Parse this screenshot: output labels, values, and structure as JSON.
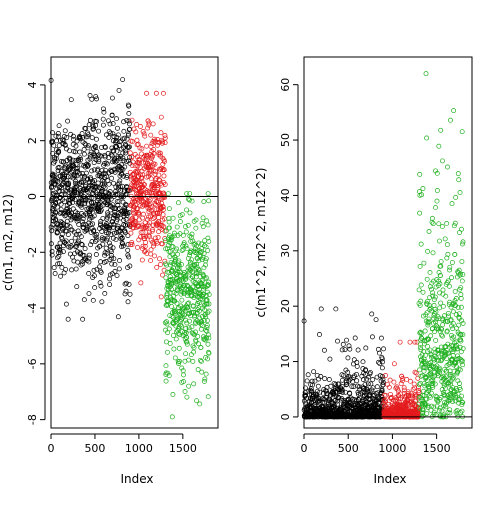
{
  "chart_data": [
    {
      "type": "scatter",
      "xlabel": "Index",
      "ylabel": "c(m1, m2, m12)",
      "xlim": [
        0,
        1900
      ],
      "ylim": [
        -8.3,
        5
      ],
      "xticks": [
        0,
        500,
        1000,
        1500
      ],
      "yticks": [
        4,
        2,
        0,
        -2,
        -4,
        -6,
        -8
      ],
      "reference_line": 0,
      "series": [
        {
          "color": "#000000",
          "x_range": [
            1,
            900
          ],
          "y_mean": 0.0,
          "y_sd": 1.5,
          "y_min": -4.4,
          "y_max": 4.4
        },
        {
          "color": "#e31a1c",
          "x_range": [
            901,
            1300
          ],
          "y_mean": 0.2,
          "y_sd": 1.2,
          "y_min": -3.6,
          "y_max": 3.7
        },
        {
          "color": "#1fb01f",
          "x_range": [
            1301,
            1800
          ],
          "y_mean": -3.5,
          "y_sd": 1.5,
          "y_min": -7.9,
          "y_max": 0.1
        }
      ]
    },
    {
      "type": "scatter",
      "xlabel": "Index",
      "ylabel": "c(m1^2, m2^2, m12^2)",
      "xlim": [
        0,
        1900
      ],
      "ylim": [
        -2,
        65
      ],
      "xticks": [
        0,
        500,
        1000,
        1500
      ],
      "yticks": [
        0,
        10,
        20,
        30,
        40,
        50,
        60
      ],
      "reference_line": 0,
      "series": [
        {
          "color": "#000000",
          "x_range": [
            1,
            900
          ],
          "y_mean": 0.0,
          "y_sd": 1.5,
          "y_min": 0,
          "y_max": 19.5,
          "squared": true
        },
        {
          "color": "#e31a1c",
          "x_range": [
            901,
            1300
          ],
          "y_mean": 0.2,
          "y_sd": 1.2,
          "y_min": 0,
          "y_max": 13.5,
          "squared": true
        },
        {
          "color": "#1fb01f",
          "x_range": [
            1301,
            1800
          ],
          "y_mean": -3.5,
          "y_sd": 1.5,
          "y_min": 0,
          "y_max": 62,
          "squared": true
        }
      ]
    }
  ]
}
